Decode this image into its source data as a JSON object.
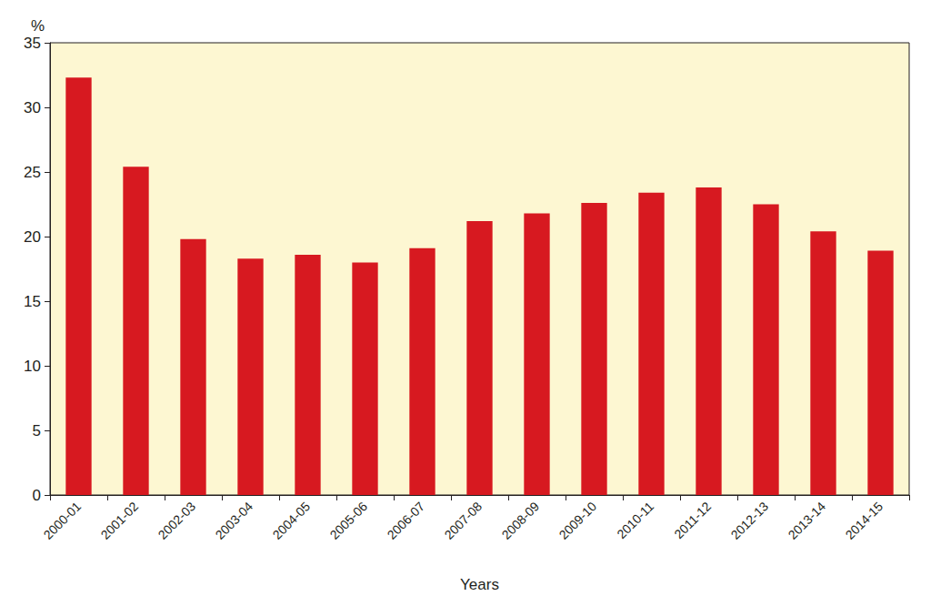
{
  "chart_data": {
    "type": "bar",
    "x_label": "Years",
    "y_label": "%",
    "categories": [
      "2000-01",
      "2001-02",
      "2002-03",
      "2003-04",
      "2004-05",
      "2005-06",
      "2006-07",
      "2007-08",
      "2008-09",
      "2009-10",
      "2010-11",
      "2011-12",
      "2012-13",
      "2013-14",
      "2014-15"
    ],
    "values": [
      32.3,
      25.4,
      19.8,
      18.3,
      18.6,
      18.0,
      19.1,
      21.2,
      21.8,
      22.6,
      23.4,
      23.8,
      22.5,
      20.4,
      18.9
    ],
    "color": "#d71920",
    "ylim": [
      0,
      35
    ],
    "yticks": [
      0,
      5,
      10,
      15,
      20,
      25,
      30,
      35
    ],
    "grid": false
  }
}
